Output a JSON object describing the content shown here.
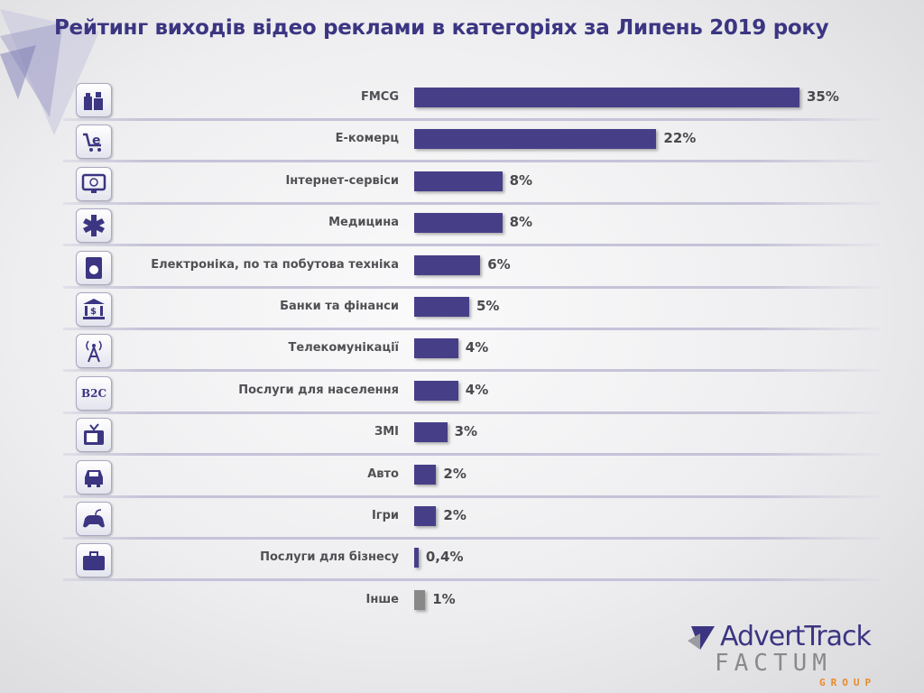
{
  "page": {
    "title": "Рейтинг виходів відео реклами в категоріях за Липень 2019 року"
  },
  "colors": {
    "bar": "#463f88",
    "other_bar": "#888888",
    "title": "#3b3582"
  },
  "logo": {
    "brand": "AdvertTrack",
    "company": "FACTUM",
    "group": "GROUP"
  },
  "chart_data": {
    "type": "bar",
    "orientation": "horizontal",
    "title": "Рейтинг виходів відео реклами в категоріях за Липень 2019 року",
    "xlabel": "",
    "ylabel": "",
    "unit": "%",
    "grid": false,
    "categories": [
      "FMCG",
      "Е-комерц",
      "Інтернет-сервіси",
      "Медицина",
      "Електроніка, по та побутова техніка",
      "Банки та фінанси",
      "Телекомунікації",
      "Послуги для населення",
      "ЗМІ",
      "Авто",
      "Ігри",
      "Послуги для бізнесу",
      "Інше"
    ],
    "values": [
      35,
      22,
      8,
      8,
      6,
      5,
      4,
      4,
      3,
      2,
      2,
      0.4,
      1
    ],
    "value_labels": [
      "35%",
      "22%",
      "8%",
      "8%",
      "6%",
      "5%",
      "4%",
      "4%",
      "3%",
      "2%",
      "2%",
      "0,4%",
      "1%"
    ],
    "icons": [
      "fmcg-products-icon",
      "ecommerce-cart-icon",
      "internet-monitor-icon",
      "medical-star-icon",
      "washing-machine-icon",
      "bank-icon",
      "telecom-tower-icon",
      "b2c-icon",
      "tv-icon",
      "car-icon",
      "gamepad-icon",
      "briefcase-icon",
      ""
    ],
    "icon_text": {
      "b2c-icon": "B2C"
    }
  }
}
